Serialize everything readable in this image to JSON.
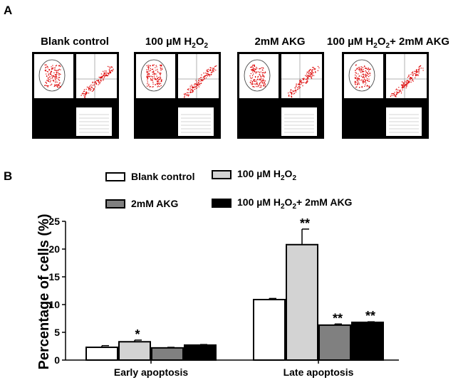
{
  "panel_a": {
    "label": "A",
    "titles": [
      "Blank control",
      "100 µM H2O2",
      "2mM AKG",
      "100 µM H2O2+ 2mM AKG"
    ]
  },
  "panel_b": {
    "label": "B"
  },
  "chart_data": {
    "type": "bar",
    "title": "",
    "xlabel": "",
    "ylabel": "Percentage of cells (%)",
    "ylim": [
      0,
      25
    ],
    "yticks": [
      "0",
      "5",
      "10",
      "15",
      "20",
      "25"
    ],
    "categories": [
      "Early apoptosis",
      "Late apoptosis"
    ],
    "series": [
      {
        "name": "Blank control",
        "color": "#ffffff",
        "values": [
          2.3,
          10.9
        ],
        "errors": [
          0.3,
          0.2
        ],
        "sig": [
          "",
          ""
        ]
      },
      {
        "name": "100 µM H2O2",
        "color": "#d3d3d3",
        "values": [
          3.3,
          20.8
        ],
        "errors": [
          0.3,
          2.8
        ],
        "sig": [
          "*",
          "**"
        ]
      },
      {
        "name": "2mM AKG",
        "color": "#808080",
        "values": [
          2.2,
          6.3
        ],
        "errors": [
          0.1,
          0.2
        ],
        "sig": [
          "",
          "**"
        ]
      },
      {
        "name": "100 µM H2O2+ 2mM AKG",
        "color": "#000000",
        "values": [
          2.7,
          6.8
        ],
        "errors": [
          0.1,
          0.1
        ],
        "sig": [
          "",
          "**"
        ]
      }
    ],
    "legend": "top"
  }
}
